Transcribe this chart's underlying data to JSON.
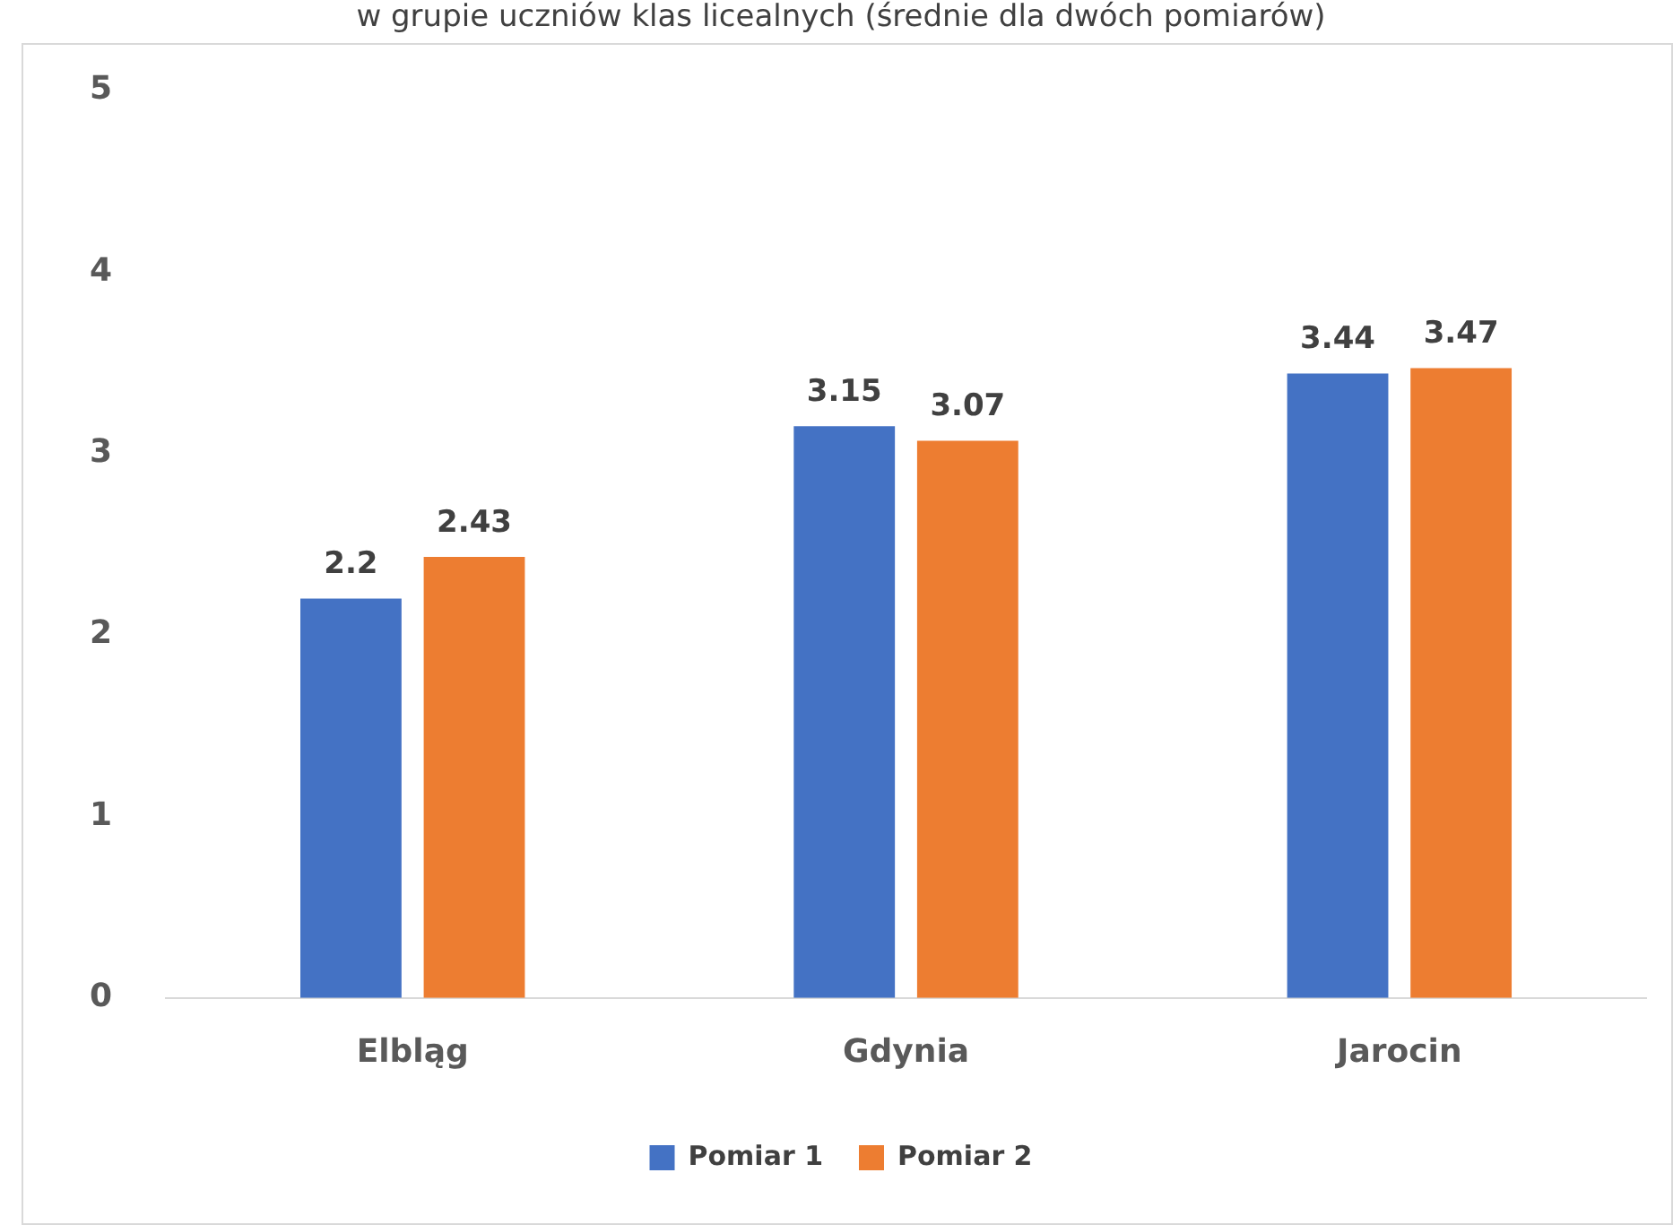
{
  "chart_data": {
    "type": "bar",
    "title": "w grupie uczniów klas licealnych (średnie dla dwóch pomiarów)",
    "categories": [
      "Elbląg",
      "Gdynia",
      "Jarocin"
    ],
    "series": [
      {
        "name": "Pomiar 1",
        "color": "#4472c4",
        "values": [
          2.2,
          3.15,
          3.44
        ]
      },
      {
        "name": "Pomiar 2",
        "color": "#ed7d31",
        "values": [
          2.43,
          3.07,
          3.47
        ]
      }
    ],
    "ylim": [
      0,
      5
    ],
    "yticks": [
      0,
      1,
      2,
      3,
      4,
      5
    ],
    "grid": false,
    "legend": "bottom",
    "data_labels": true
  }
}
